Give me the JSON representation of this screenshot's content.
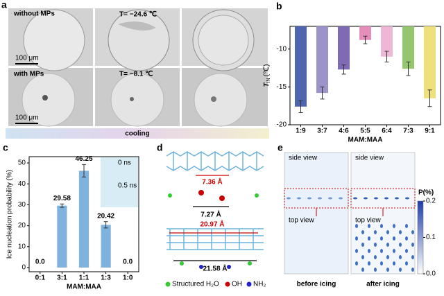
{
  "panel_labels": [
    "a",
    "b",
    "c",
    "d",
    "e"
  ],
  "panel_a": {
    "row1_label": "without MPs",
    "row1_temp": "T= −24.6 ℃",
    "row2_label": "with MPs",
    "row2_temp": "T= −8.1 ℃",
    "scale": [
      "100 μm",
      "100 μm"
    ],
    "cooling": "cooling"
  },
  "chart_data": [
    {
      "type": "bar",
      "categories": [
        "1:9",
        "3:7",
        "4:6",
        "5:5",
        "6:4",
        "7:3",
        "9:1"
      ],
      "values": [
        -17.6,
        -15.8,
        -12.7,
        -8.8,
        -11.0,
        -12.6,
        -16.5
      ],
      "errors": [
        0.8,
        0.8,
        0.6,
        0.5,
        0.7,
        0.9,
        1.1
      ],
      "colors": [
        "#4e64ad",
        "#9d93c9",
        "#7e6bb4",
        "#e48fbb",
        "#ecb8d6",
        "#93c66f",
        "#efe07e"
      ],
      "ylim": [
        -20,
        -7
      ],
      "yticks": [
        -20,
        -15,
        -10
      ],
      "x_label": "MAM:MAA",
      "y_label": {
        "main": "T",
        "sub": "IN",
        "unit": "(℃)"
      }
    },
    {
      "type": "bar",
      "categories": [
        "0:1",
        "3:1",
        "1:1",
        "1:3",
        "1:0"
      ],
      "values": [
        0.0,
        29.58,
        46.25,
        20.42,
        0.0
      ],
      "value_labels": [
        "0.0",
        "29.58",
        "46.25",
        "20.42",
        "0.0"
      ],
      "errors": [
        0,
        0.8,
        3,
        1.5,
        0
      ],
      "color": "#7fb2dc",
      "ylim": [
        -2,
        53
      ],
      "yticks": [
        0,
        10,
        20,
        30,
        40,
        50
      ],
      "x_label": "MAM:MAA",
      "y_label": "Ice nucleation probability (%)",
      "inset": [
        "0 ns",
        "0.5 ns"
      ]
    }
  ],
  "panel_d": {
    "distances": [
      "7.36 Å",
      "7.27 Å",
      "20.97 Å",
      "21.58 Å"
    ],
    "legend": [
      "Structured H₂O",
      "OH",
      "NH₂"
    ]
  },
  "panel_e": {
    "views": [
      "side view",
      "side view",
      "top view",
      "top view"
    ],
    "captions": [
      "before icing",
      "after icing"
    ],
    "colorbar": {
      "title": "P(%)",
      "lim": [
        0,
        0.2
      ],
      "ticks": [
        0.2,
        0.1,
        {
          "value": 0,
          "label": "0.0"
        }
      ]
    }
  }
}
